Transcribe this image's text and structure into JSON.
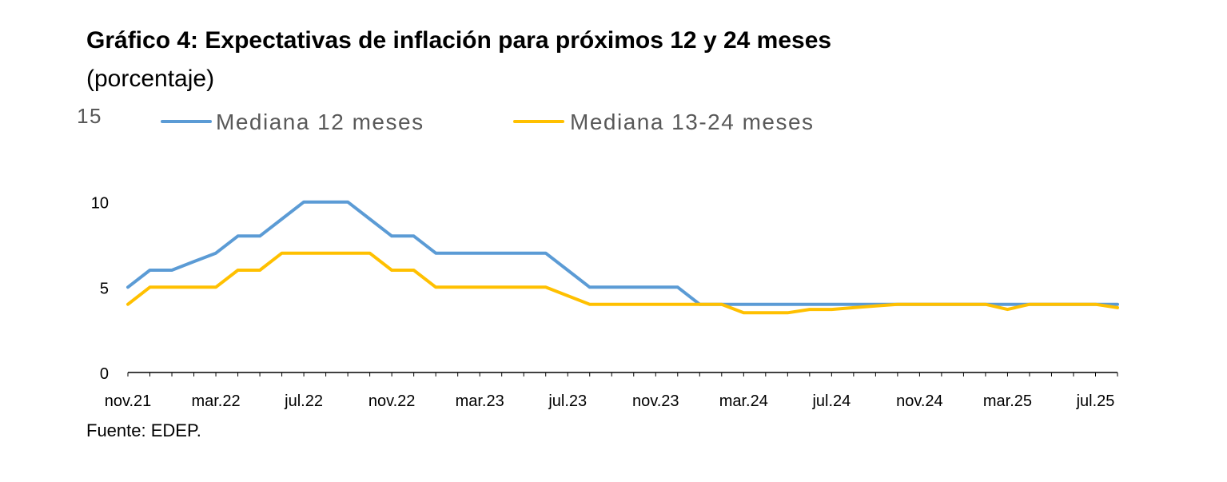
{
  "header": {
    "title": "Gráfico 4: Expectativas de inflación para próximos 12 y 24 meses",
    "subtitle": "(porcentaje)"
  },
  "footer": {
    "source": "Fuente: EDEP."
  },
  "chart_data": {
    "type": "line",
    "title": "Gráfico 4: Expectativas de inflación para próximos 12 y 24 meses",
    "subtitle": "(porcentaje)",
    "ylim": [
      0,
      15
    ],
    "y_ticks": [
      0,
      5,
      10,
      15
    ],
    "x_tick_labels": [
      "nov.21",
      "mar.22",
      "jul.22",
      "nov.22",
      "mar.23",
      "jul.23",
      "nov.23",
      "mar.24",
      "jul.24",
      "nov.24",
      "mar.25",
      "jul.25"
    ],
    "grid": false,
    "legend_position": "top",
    "x": [
      "nov.21",
      "dic.21",
      "ene.22",
      "feb.22",
      "mar.22",
      "abr.22",
      "may.22",
      "jun.22",
      "jul.22",
      "ago.22",
      "sep.22",
      "oct.22",
      "nov.22",
      "dic.22",
      "ene.23",
      "feb.23",
      "mar.23",
      "abr.23",
      "may.23",
      "jun.23",
      "jul.23",
      "ago.23",
      "sep.23",
      "oct.23",
      "nov.23",
      "dic.23",
      "ene.24",
      "feb.24",
      "mar.24",
      "abr.24",
      "may.24",
      "jun.24",
      "jul.24",
      "ago.24",
      "sep.24",
      "oct.24",
      "nov.24",
      "dic.24",
      "ene.25",
      "feb.25",
      "mar.25",
      "abr.25",
      "may.25",
      "jun.25",
      "jul.25",
      "ago.25"
    ],
    "series": [
      {
        "name": "Mediana 12 meses",
        "color": "#5B9BD5",
        "values": [
          5,
          6,
          6,
          6.5,
          7,
          8,
          8,
          9,
          10,
          10,
          10,
          9,
          8,
          8,
          7,
          7,
          7,
          7,
          7,
          7,
          6,
          5,
          5,
          5,
          5,
          5,
          4,
          4,
          4,
          4,
          4,
          4,
          4,
          4,
          4,
          4,
          4,
          4,
          4,
          4,
          4,
          4,
          4,
          4,
          4,
          4
        ]
      },
      {
        "name": "Mediana 13-24 meses",
        "color": "#FFC000",
        "values": [
          4,
          5,
          5,
          5,
          5,
          6,
          6,
          7,
          7,
          7,
          7,
          7,
          6,
          6,
          5,
          5,
          5,
          5,
          5,
          5,
          4.5,
          4,
          4,
          4,
          4,
          4,
          4,
          4,
          3.5,
          3.5,
          3.5,
          3.7,
          3.7,
          3.8,
          3.9,
          4,
          4,
          4,
          4,
          4,
          3.7,
          4,
          4,
          4,
          4,
          3.8
        ]
      }
    ]
  }
}
